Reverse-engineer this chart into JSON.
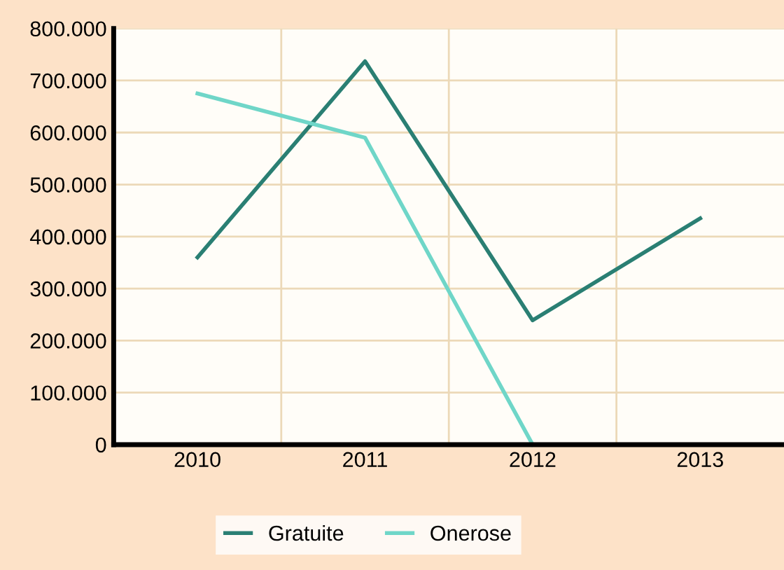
{
  "chart_data": {
    "type": "line",
    "categories": [
      "2010",
      "2011",
      "2012",
      "2013"
    ],
    "series": [
      {
        "name": "Gratuite",
        "color": "#2a7f73",
        "values": [
          360000,
          737000,
          239000,
          435000
        ]
      },
      {
        "name": "Onerose",
        "color": "#6fd6c8",
        "values": [
          675000,
          590000,
          0,
          null
        ]
      }
    ],
    "ylim": [
      0,
      800000
    ],
    "yticks": [
      {
        "value": 0,
        "label": "0"
      },
      {
        "value": 100000,
        "label": "100.000"
      },
      {
        "value": 200000,
        "label": "200.000"
      },
      {
        "value": 300000,
        "label": "300.000"
      },
      {
        "value": 400000,
        "label": "400.000"
      },
      {
        "value": 500000,
        "label": "500.000"
      },
      {
        "value": 600000,
        "label": "600.000"
      },
      {
        "value": 700000,
        "label": "700.000"
      },
      {
        "value": 800000,
        "label": "800.000"
      }
    ],
    "grid": true,
    "legend": "bottom",
    "marker": "none",
    "line_style": "solid"
  }
}
